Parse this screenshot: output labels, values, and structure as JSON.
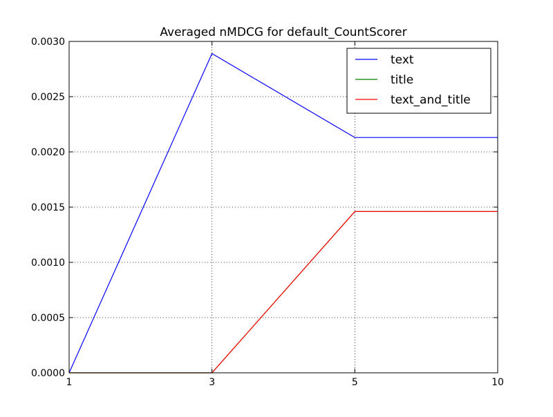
{
  "chart_data": {
    "type": "line",
    "title": "Averaged nMDCG for default_CountScorer",
    "xlabel": "",
    "ylabel": "",
    "categories": [
      "1",
      "3",
      "5",
      "10"
    ],
    "y_ticks": [
      "0.0000",
      "0.0005",
      "0.0010",
      "0.0015",
      "0.0020",
      "0.0025",
      "0.0030"
    ],
    "ylim": [
      0,
      0.003
    ],
    "grid": true,
    "legend_position": "top-right",
    "series": [
      {
        "name": "text",
        "color": "#0000ff",
        "values": [
          0.0,
          0.00289,
          0.00213,
          0.00213
        ]
      },
      {
        "name": "title",
        "color": "#008000",
        "values": [
          0.0,
          0.0,
          0.00146,
          0.00146
        ]
      },
      {
        "name": "text_and_title",
        "color": "#ff0000",
        "values": [
          0.0,
          0.0,
          0.00146,
          0.00146
        ]
      }
    ]
  }
}
